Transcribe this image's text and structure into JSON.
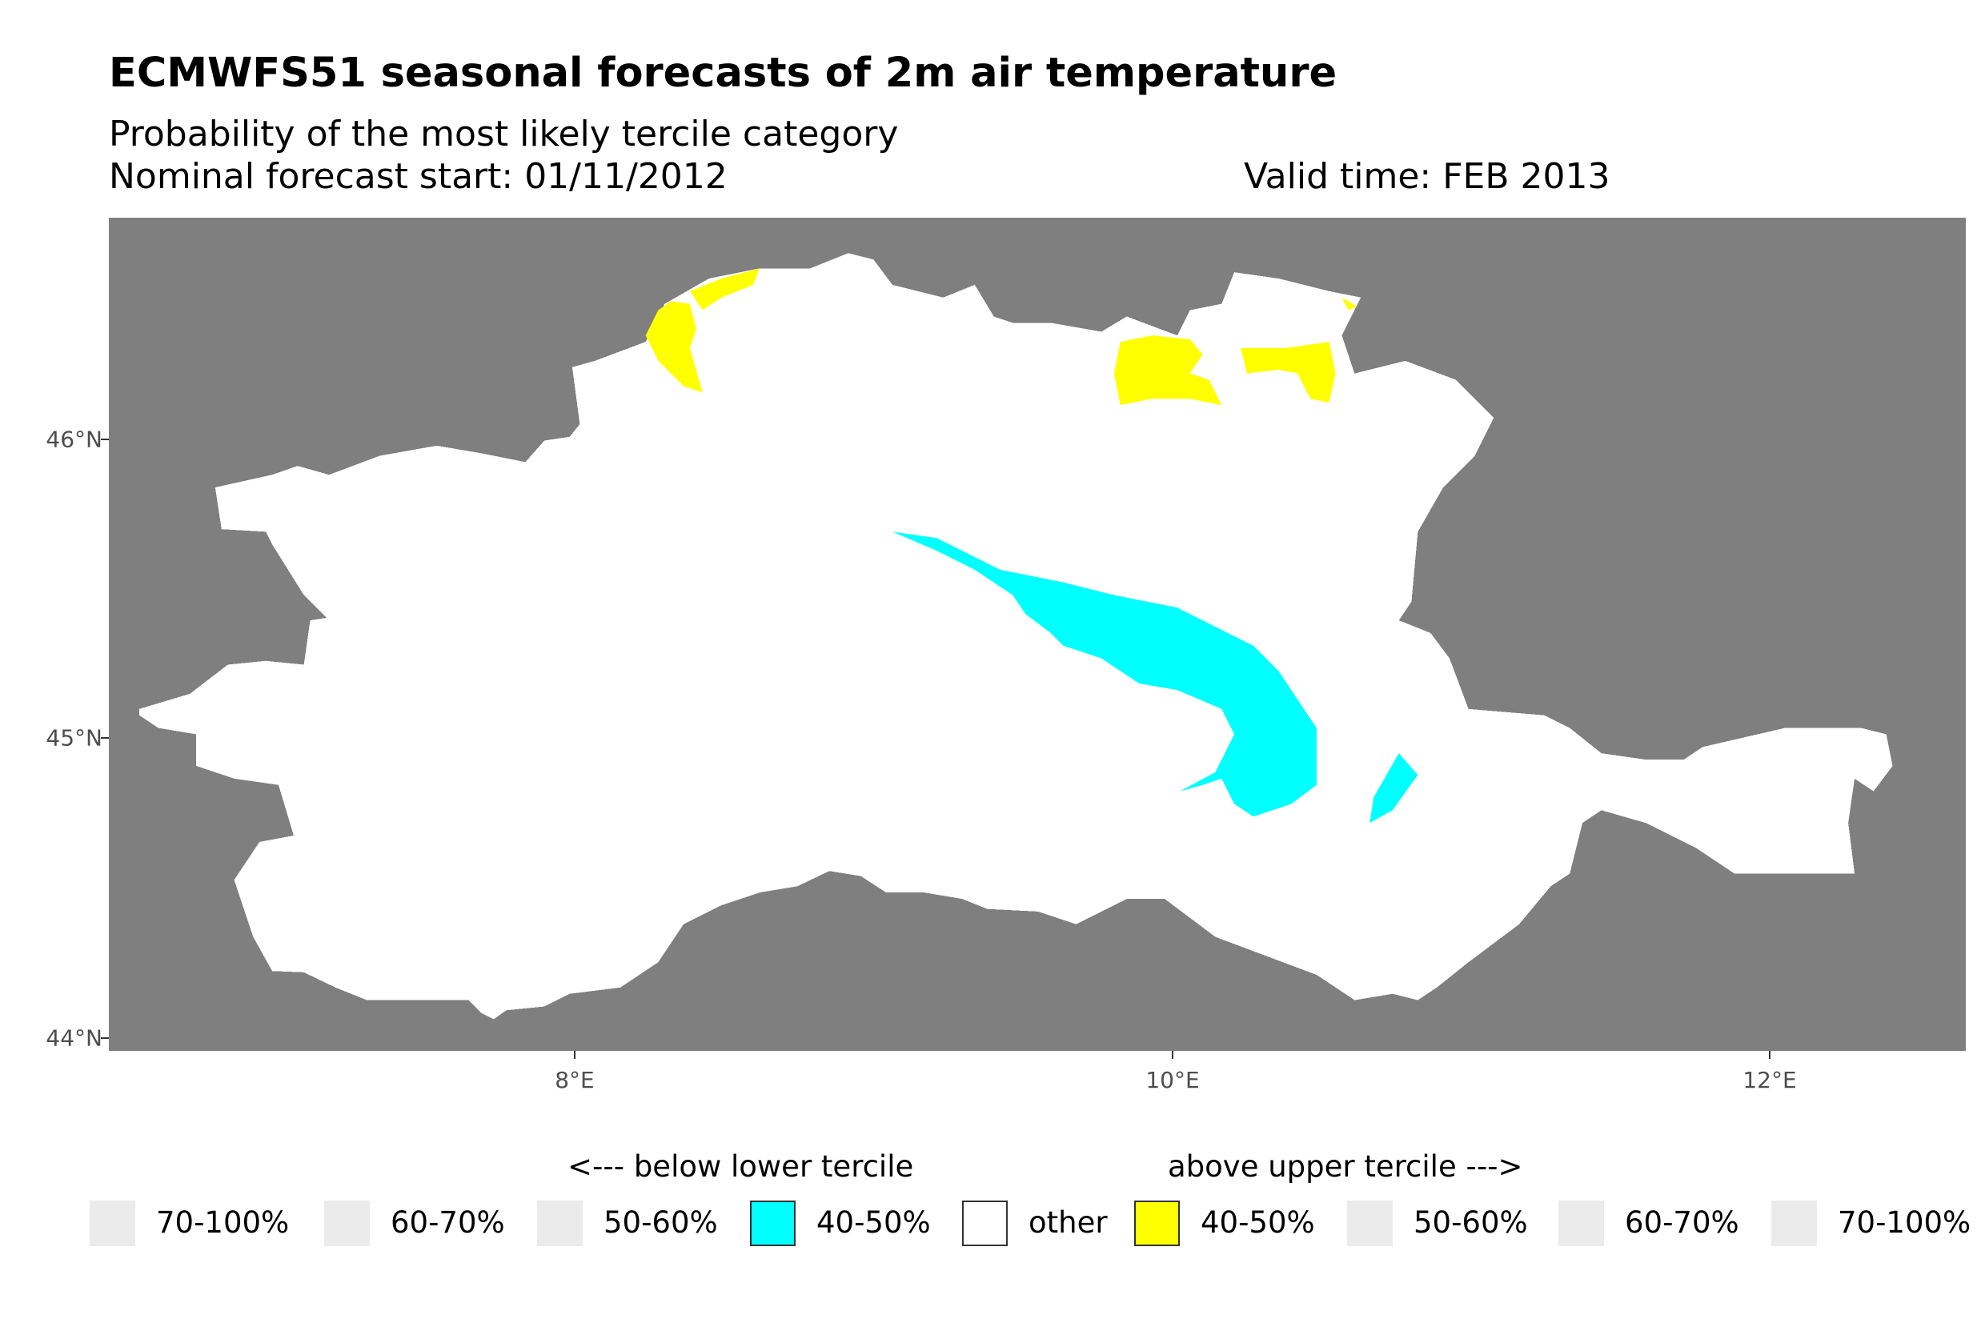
{
  "header": {
    "title": "ECMWFS51 seasonal forecasts of 2m air temperature",
    "subtitle": "Probability of the most likely tercile category",
    "forecast_start": "Nominal forecast start: 01/11/2012",
    "valid_time": "Valid time: FEB 2013"
  },
  "axes": {
    "y_ticks": [
      "46°N",
      "45°N",
      "44°N"
    ],
    "x_ticks": [
      "8°E",
      "10°E",
      "12°E"
    ]
  },
  "legend": {
    "below_label": "<--- below lower tercile",
    "above_label": "above upper tercile --->",
    "keys": [
      {
        "label": "70-100%",
        "color": "#ebebeb",
        "present": false
      },
      {
        "label": "60-70%",
        "color": "#ebebeb",
        "present": false
      },
      {
        "label": "50-60%",
        "color": "#ebebeb",
        "present": false
      },
      {
        "label": "40-50%",
        "color": "#00ffff",
        "present": true
      },
      {
        "label": "other",
        "color": "#ffffff",
        "present": true
      },
      {
        "label": "40-50%",
        "color": "#ffff00",
        "present": true
      },
      {
        "label": "50-60%",
        "color": "#ebebeb",
        "present": false
      },
      {
        "label": "60-70%",
        "color": "#ebebeb",
        "present": false
      },
      {
        "label": "70-100%",
        "color": "#ebebeb",
        "present": false
      }
    ]
  },
  "colors": {
    "background": "#7f7f7f",
    "other": "#ffffff",
    "below_40_50": "#00ffff",
    "above_40_50": "#ffff00"
  }
}
